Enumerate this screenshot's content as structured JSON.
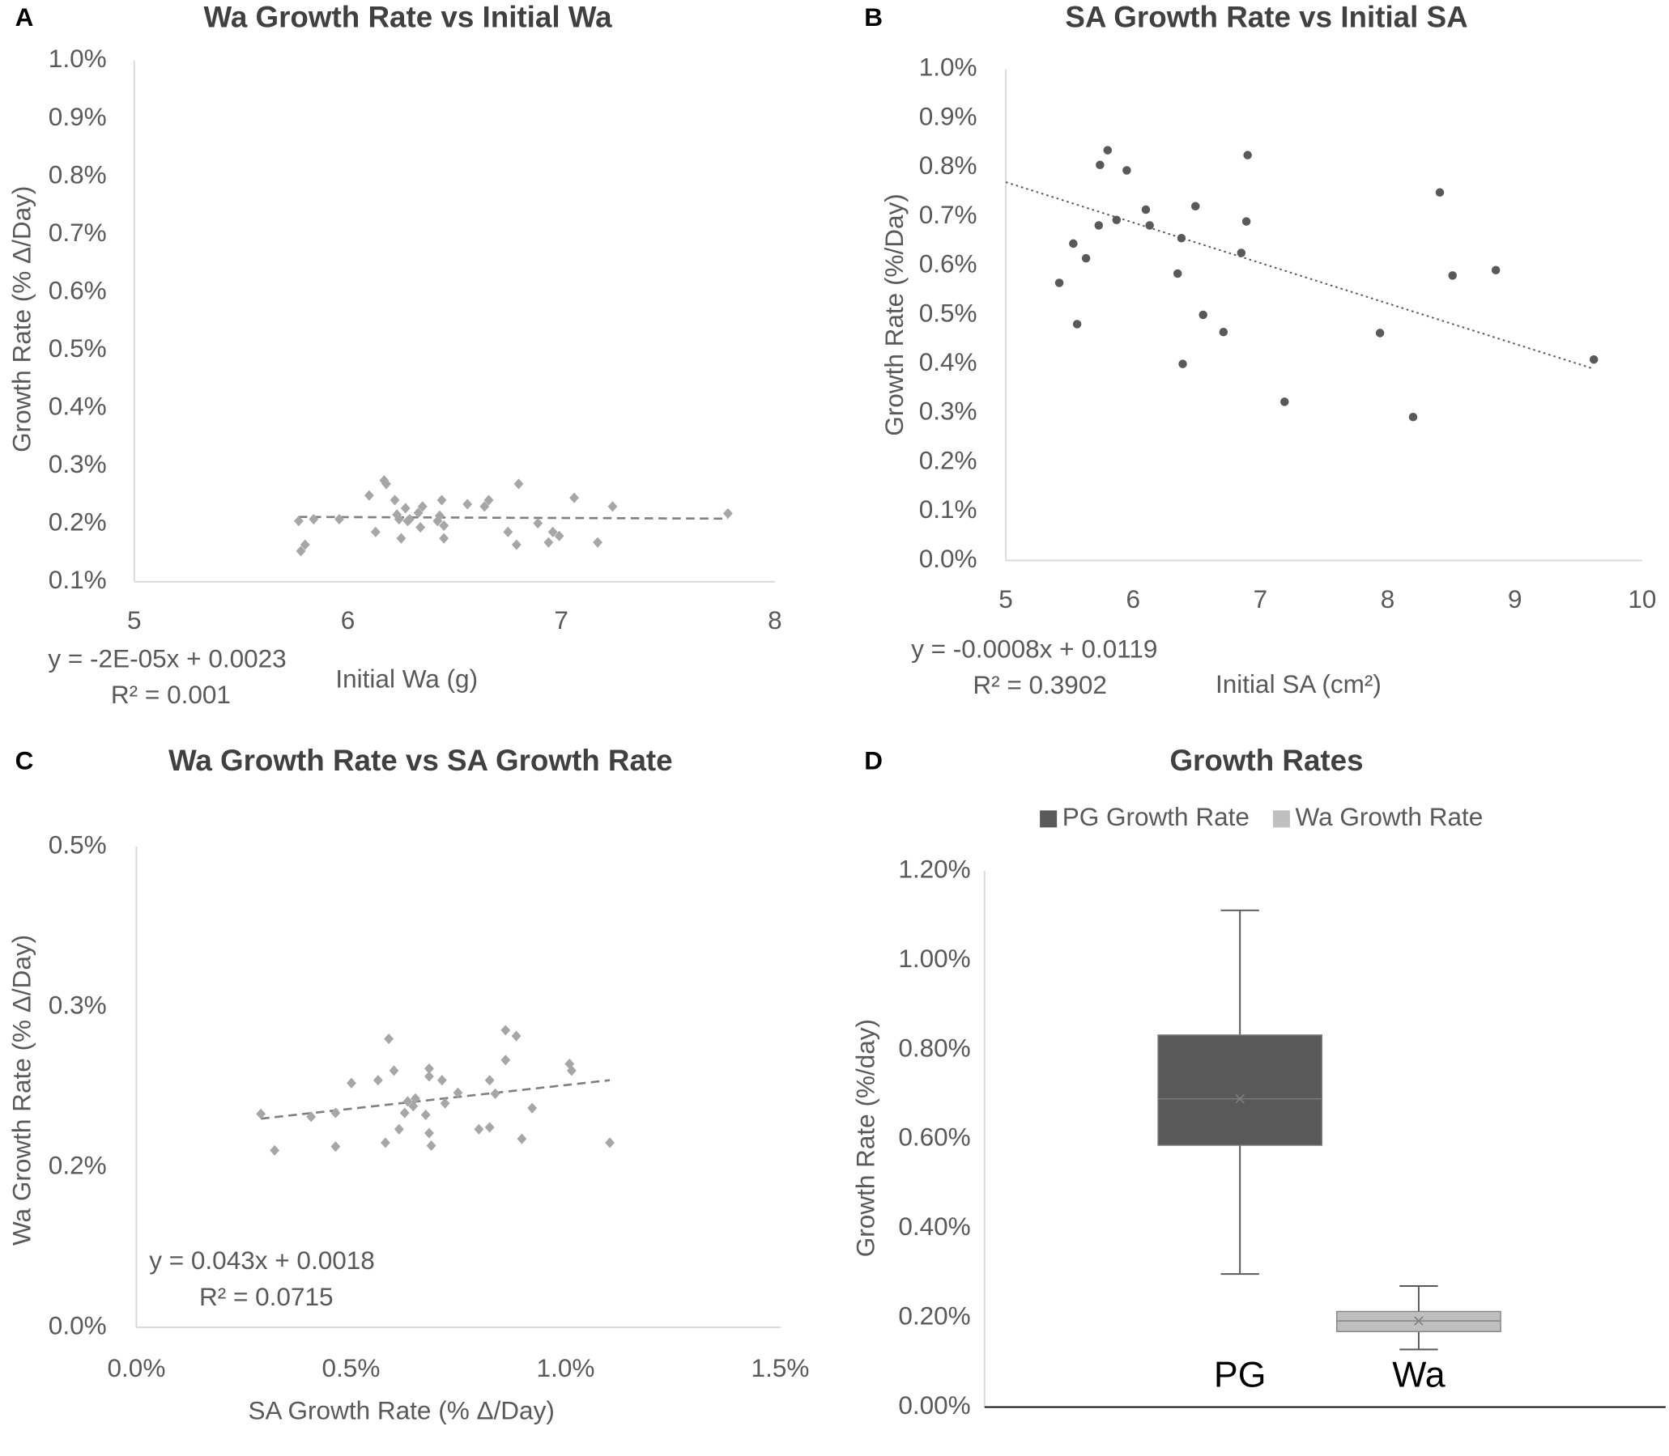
{
  "chart_data": [
    {
      "type": "scatter",
      "panel": "A",
      "title": "Wa Growth Rate vs Initial Wa",
      "xlabel": "Initial Wa (g)",
      "ylabel": "Growth Rate (% Δ/Day)",
      "equation": "y = -2E-05x + 0.0023",
      "r_squared": "R² = 0.001",
      "marker": "diamond",
      "color": "#a6a6a6",
      "trend_color": "#7f7f7f",
      "trend_style": "dashed",
      "x": [
        5.77,
        5.8,
        5.78,
        5.84,
        5.96,
        6.1,
        6.13,
        6.17,
        6.18,
        6.22,
        6.23,
        6.24,
        6.25,
        6.27,
        6.28,
        6.29,
        6.33,
        6.34,
        6.35,
        6.42,
        6.43,
        6.44,
        6.45,
        6.45,
        6.56,
        6.64,
        6.66,
        6.75,
        6.8,
        6.79,
        6.89,
        6.94,
        6.96,
        6.99,
        7.06,
        7.17,
        7.24,
        7.78
      ],
      "values": [
        0.205,
        0.164,
        0.153,
        0.208,
        0.208,
        0.249,
        0.186,
        0.275,
        0.269,
        0.241,
        0.216,
        0.208,
        0.175,
        0.227,
        0.205,
        0.208,
        0.219,
        0.194,
        0.23,
        0.205,
        0.214,
        0.241,
        0.197,
        0.175,
        0.234,
        0.23,
        0.241,
        0.186,
        0.269,
        0.164,
        0.201,
        0.168,
        0.186,
        0.179,
        0.245,
        0.168,
        0.23,
        0.218
      ],
      "trendline": {
        "x": [
          5.77,
          7.78
        ],
        "y": [
          0.212,
          0.209
        ]
      },
      "xlim": [
        5,
        8
      ],
      "xticks": [
        5,
        6,
        7,
        8
      ],
      "ylim": [
        0.1,
        1.0
      ],
      "yticks": [
        {
          "value": 0.1,
          "label": "0.1%"
        },
        {
          "value": 0.2,
          "label": "0.2%"
        },
        {
          "value": 0.3,
          "label": "0.3%"
        },
        {
          "value": 0.4,
          "label": "0.4%"
        },
        {
          "value": 0.5,
          "label": "0.5%"
        },
        {
          "value": 0.6,
          "label": "0.6%"
        },
        {
          "value": 0.7,
          "label": "0.7%"
        },
        {
          "value": 0.8,
          "label": "0.8%"
        },
        {
          "value": 0.9,
          "label": "0.9%"
        },
        {
          "value": 1.0,
          "label": "1.0%"
        }
      ]
    },
    {
      "type": "scatter",
      "panel": "B",
      "title": "SA Growth Rate vs Initial SA",
      "xlabel": "Initial SA (cm²)",
      "ylabel": "Growth Rate (%/Day)",
      "equation": "y = -0.0008x + 0.0119",
      "r_squared": "R² = 0.3902",
      "marker": "circle",
      "color": "#595959",
      "trend_color": "#595959",
      "trend_style": "dotted",
      "x": [
        5.42,
        5.53,
        5.56,
        5.63,
        5.73,
        5.74,
        5.8,
        5.87,
        5.95,
        6.1,
        6.13,
        6.35,
        6.38,
        6.39,
        6.49,
        6.55,
        6.71,
        6.85,
        6.89,
        6.9,
        7.19,
        7.94,
        8.2,
        8.41,
        8.51,
        8.85,
        9.62
      ],
      "values": [
        0.565,
        0.645,
        0.481,
        0.615,
        0.682,
        0.805,
        0.835,
        0.693,
        0.794,
        0.714,
        0.682,
        0.584,
        0.656,
        0.4,
        0.721,
        0.5,
        0.465,
        0.626,
        0.69,
        0.825,
        0.323,
        0.463,
        0.292,
        0.749,
        0.58,
        0.591,
        0.409
      ],
      "trendline": {
        "x": [
          5,
          9.62
        ],
        "y": [
          0.77,
          0.39
        ]
      },
      "xlim": [
        5,
        10
      ],
      "xticks": [
        5,
        6,
        7,
        8,
        9,
        10
      ],
      "ylim": [
        0,
        1.0
      ],
      "yticks": [
        {
          "value": 0,
          "label": "0.0%"
        },
        {
          "value": 0.1,
          "label": "0.1%"
        },
        {
          "value": 0.2,
          "label": "0.2%"
        },
        {
          "value": 0.3,
          "label": "0.3%"
        },
        {
          "value": 0.4,
          "label": "0.4%"
        },
        {
          "value": 0.5,
          "label": "0.5%"
        },
        {
          "value": 0.6,
          "label": "0.6%"
        },
        {
          "value": 0.7,
          "label": "0.7%"
        },
        {
          "value": 0.8,
          "label": "0.8%"
        },
        {
          "value": 0.9,
          "label": "0.9%"
        },
        {
          "value": 1.0,
          "label": "1.0%"
        }
      ]
    },
    {
      "type": "scatter",
      "panel": "C",
      "title": "Wa Growth Rate vs SA Growth Rate",
      "xlabel": "SA Growth Rate (% Δ/Day)",
      "ylabel": "Wa Growth Rate (% Δ/Day)",
      "equation": "y = 0.043x + 0.0018",
      "r_squared": "R² = 0.0715",
      "marker": "diamond",
      "color": "#a6a6a6",
      "trend_color": "#7f7f7f",
      "trend_style": "dashed",
      "x": [
        0.29,
        0.322,
        0.407,
        0.464,
        0.464,
        0.501,
        0.563,
        0.58,
        0.588,
        0.6,
        0.612,
        0.625,
        0.632,
        0.645,
        0.65,
        0.674,
        0.682,
        0.682,
        0.682,
        0.687,
        0.712,
        0.719,
        0.749,
        0.798,
        0.823,
        0.823,
        0.836,
        0.86,
        0.86,
        0.885,
        0.898,
        0.922,
        1.009,
        1.014,
        1.103
      ],
      "values": [
        0.222,
        0.184,
        0.219,
        0.223,
        0.188,
        0.254,
        0.257,
        0.192,
        0.3,
        0.267,
        0.206,
        0.223,
        0.235,
        0.23,
        0.238,
        0.221,
        0.269,
        0.261,
        0.202,
        0.189,
        0.257,
        0.233,
        0.244,
        0.206,
        0.208,
        0.257,
        0.243,
        0.309,
        0.278,
        0.303,
        0.196,
        0.228,
        0.274,
        0.267,
        0.192
      ],
      "trendline": {
        "x": [
          0.29,
          1.103
        ],
        "y": [
          0.217,
          0.257
        ]
      },
      "xlim": [
        0,
        1.5
      ],
      "xticks": [
        {
          "value": 0,
          "label": "0.0%"
        },
        {
          "value": 0.5,
          "label": "0.5%"
        },
        {
          "value": 1.0,
          "label": "1.0%"
        },
        {
          "value": 1.5,
          "label": "1.5%"
        }
      ],
      "ylim": [
        0,
        0.5
      ],
      "yticks": [
        {
          "value": 0,
          "label": "0.0%"
        },
        {
          "value": 0.1667,
          "label": "0.2%"
        },
        {
          "value": 0.3333,
          "label": "0.3%"
        },
        {
          "value": 0.5,
          "label": "0.5%"
        }
      ]
    },
    {
      "type": "box",
      "panel": "D",
      "title": "Growth Rates",
      "ylabel": "Growth Rate (%/day)",
      "categories": [
        "PG",
        "Wa"
      ],
      "series": [
        {
          "name": "PG Growth Rate",
          "color": "#595959",
          "min": 0.298,
          "q1": 0.586,
          "median": 0.69,
          "q3": 0.833,
          "max": 1.112,
          "mean": 0.69
        },
        {
          "name": "Wa Growth Rate",
          "color": "#bfbfbf",
          "min": 0.129,
          "q1": 0.169,
          "median": 0.193,
          "q3": 0.214,
          "max": 0.271,
          "mean": 0.193
        }
      ],
      "ylim": [
        0,
        1.2
      ],
      "yticks": [
        {
          "value": 0,
          "label": "0.00%"
        },
        {
          "value": 0.2,
          "label": "0.20%"
        },
        {
          "value": 0.4,
          "label": "0.40%"
        },
        {
          "value": 0.6,
          "label": "0.60%"
        },
        {
          "value": 0.8,
          "label": "0.80%"
        },
        {
          "value": 1.0,
          "label": "1.00%"
        },
        {
          "value": 1.2,
          "label": "1.20%"
        }
      ]
    }
  ]
}
